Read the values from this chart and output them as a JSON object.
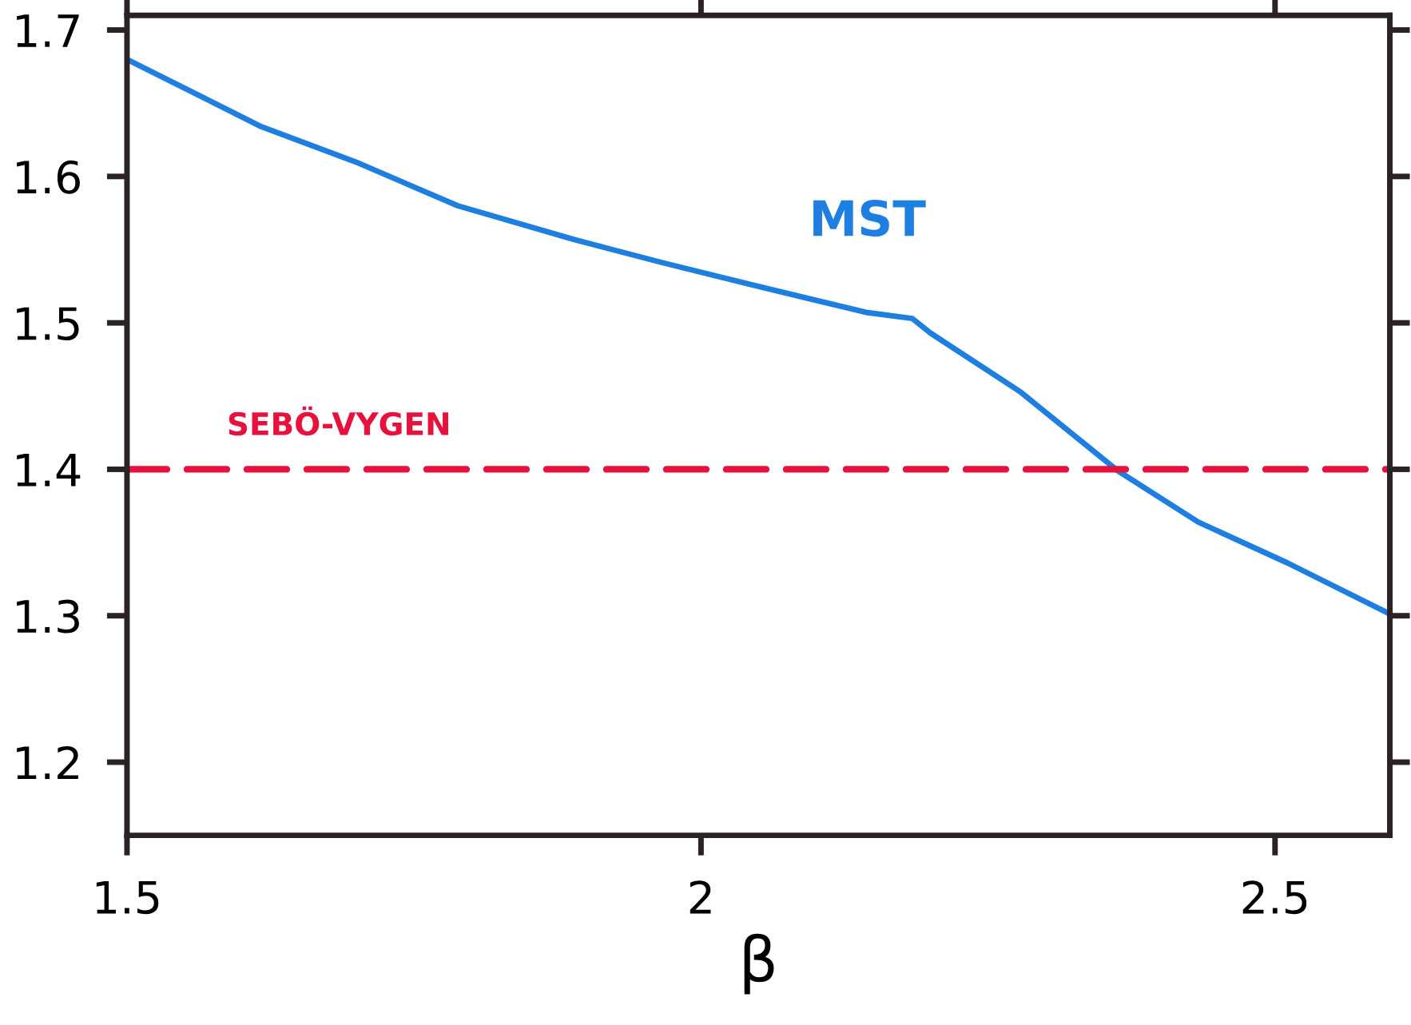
{
  "chart_data": {
    "type": "line",
    "xlabel": "β",
    "xlim": [
      1.5,
      2.6
    ],
    "ylim": [
      1.15,
      1.71
    ],
    "xticks": [
      1.5,
      2,
      2.5
    ],
    "yticks": [
      1.2,
      1.3,
      1.4,
      1.5,
      1.6,
      1.7
    ],
    "grid": false,
    "legend": false,
    "marker": "none",
    "series": [
      {
        "name": "MST",
        "color": "#1e7fe0",
        "line_style": "solid",
        "x": [
          1.5,
          1.617,
          1.702,
          1.788,
          1.889,
          1.967,
          2.044,
          2.145,
          2.184,
          2.2,
          2.278,
          2.363,
          2.433,
          2.511,
          2.598
        ],
        "values": [
          1.68,
          1.634,
          1.609,
          1.58,
          1.557,
          1.541,
          1.526,
          1.507,
          1.503,
          1.493,
          1.453,
          1.399,
          1.364,
          1.336,
          1.302
        ]
      }
    ],
    "ref_lines": [
      {
        "axis": "y",
        "value": 1.4,
        "label": "SEBÖ-VYGEN",
        "color": "#e8103c",
        "line_style": "dashed"
      }
    ]
  }
}
